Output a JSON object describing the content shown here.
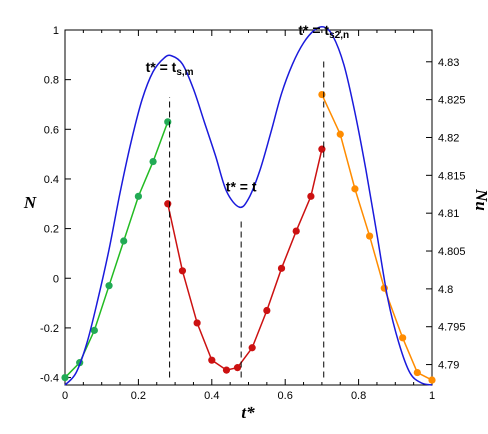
{
  "chart_data": {
    "type": "line",
    "xlabel": "t*",
    "ylabel_left": "N",
    "ylabel_right": "Nu",
    "xlim": [
      0,
      1
    ],
    "ylim_left": [
      -0.43,
      1.0
    ],
    "ylim_right": [
      4.7873,
      4.8342
    ],
    "x_ticks": [
      "0",
      "0.2",
      "0.4",
      "0.6",
      "0.8",
      "1"
    ],
    "x_tick_values": [
      0,
      0.2,
      0.4,
      0.6,
      0.8,
      1
    ],
    "y_left_ticks": [
      "-0.4",
      "-0.2",
      "0",
      "0.2",
      "0.4",
      "0.6",
      "0.8",
      "1"
    ],
    "y_left_tick_values": [
      -0.4,
      -0.2,
      0,
      0.2,
      0.4,
      0.6,
      0.8,
      1
    ],
    "y_right_ticks": [
      "4.79",
      "4.795",
      "4.8",
      "4.805",
      "4.81",
      "4.815",
      "4.82",
      "4.825",
      "4.83"
    ],
    "y_right_tick_values": [
      4.79,
      4.795,
      4.8,
      4.805,
      4.81,
      4.815,
      4.82,
      4.825,
      4.83
    ],
    "colors": {
      "green": "#22bb22",
      "green_marker": "#22aa55",
      "red": "#cc1111",
      "orange": "#ff8c00",
      "blue": "#1a1adc",
      "dashed": "#000000"
    },
    "series": [
      {
        "axis": "left",
        "color_key": "green",
        "marker_color_key": "green_marker",
        "x": [
          0.0,
          0.04,
          0.08,
          0.12,
          0.16,
          0.2,
          0.24,
          0.28
        ],
        "y": [
          -0.4,
          -0.34,
          -0.21,
          -0.03,
          0.15,
          0.33,
          0.47,
          0.63
        ]
      },
      {
        "axis": "left",
        "color_key": "red",
        "marker_color_key": "red",
        "x": [
          0.28,
          0.32,
          0.36,
          0.4,
          0.44,
          0.47,
          0.51,
          0.55,
          0.59,
          0.63,
          0.67,
          0.7
        ],
        "y": [
          0.3,
          0.03,
          -0.18,
          -0.33,
          -0.37,
          -0.36,
          -0.28,
          -0.13,
          0.04,
          0.19,
          0.33,
          0.52
        ]
      },
      {
        "axis": "left",
        "color_key": "orange",
        "marker_color_key": "orange",
        "x": [
          0.7,
          0.75,
          0.79,
          0.83,
          0.87,
          0.92,
          0.96,
          1.0
        ],
        "y": [
          0.74,
          0.58,
          0.36,
          0.17,
          -0.04,
          -0.24,
          -0.38,
          -0.41
        ]
      },
      {
        "axis": "right",
        "color_key": "blue",
        "markers": false,
        "x": [
          0.0,
          0.03,
          0.06,
          0.09,
          0.12,
          0.15,
          0.18,
          0.21,
          0.24,
          0.27,
          0.29,
          0.32,
          0.35,
          0.38,
          0.41,
          0.44,
          0.475,
          0.5,
          0.53,
          0.56,
          0.59,
          0.62,
          0.65,
          0.68,
          0.705,
          0.73,
          0.76,
          0.79,
          0.82,
          0.85,
          0.88,
          0.91,
          0.94,
          0.97,
          1.0
        ],
        "y": [
          4.7873,
          4.7889,
          4.7929,
          4.7987,
          4.8052,
          4.8127,
          4.8194,
          4.825,
          4.8287,
          4.8305,
          4.8308,
          4.8297,
          4.8264,
          4.822,
          4.8176,
          4.8129,
          4.8108,
          4.8119,
          4.8155,
          4.8205,
          4.8258,
          4.8297,
          4.8325,
          4.8342,
          4.8346,
          4.8334,
          4.8296,
          4.8233,
          4.8157,
          4.8072,
          4.7986,
          4.7928,
          4.7889,
          4.7876,
          4.7873
        ]
      }
    ],
    "markers_left": [
      {
        "x": 0.285,
        "y_from": -0.4,
        "y_to": 0.73,
        "label": "t* = t",
        "sub": "s,m",
        "label_y": 0.83
      },
      {
        "x": 0.48,
        "y_from": -0.4,
        "y_to": 0.24,
        "label": "t* = t",
        "sub": "",
        "label_y": 0.35
      },
      {
        "x": 0.705,
        "y_from": -0.4,
        "y_to": 0.88,
        "label": "t* = t",
        "sub": "s2,n",
        "label_y": 0.98
      }
    ]
  }
}
